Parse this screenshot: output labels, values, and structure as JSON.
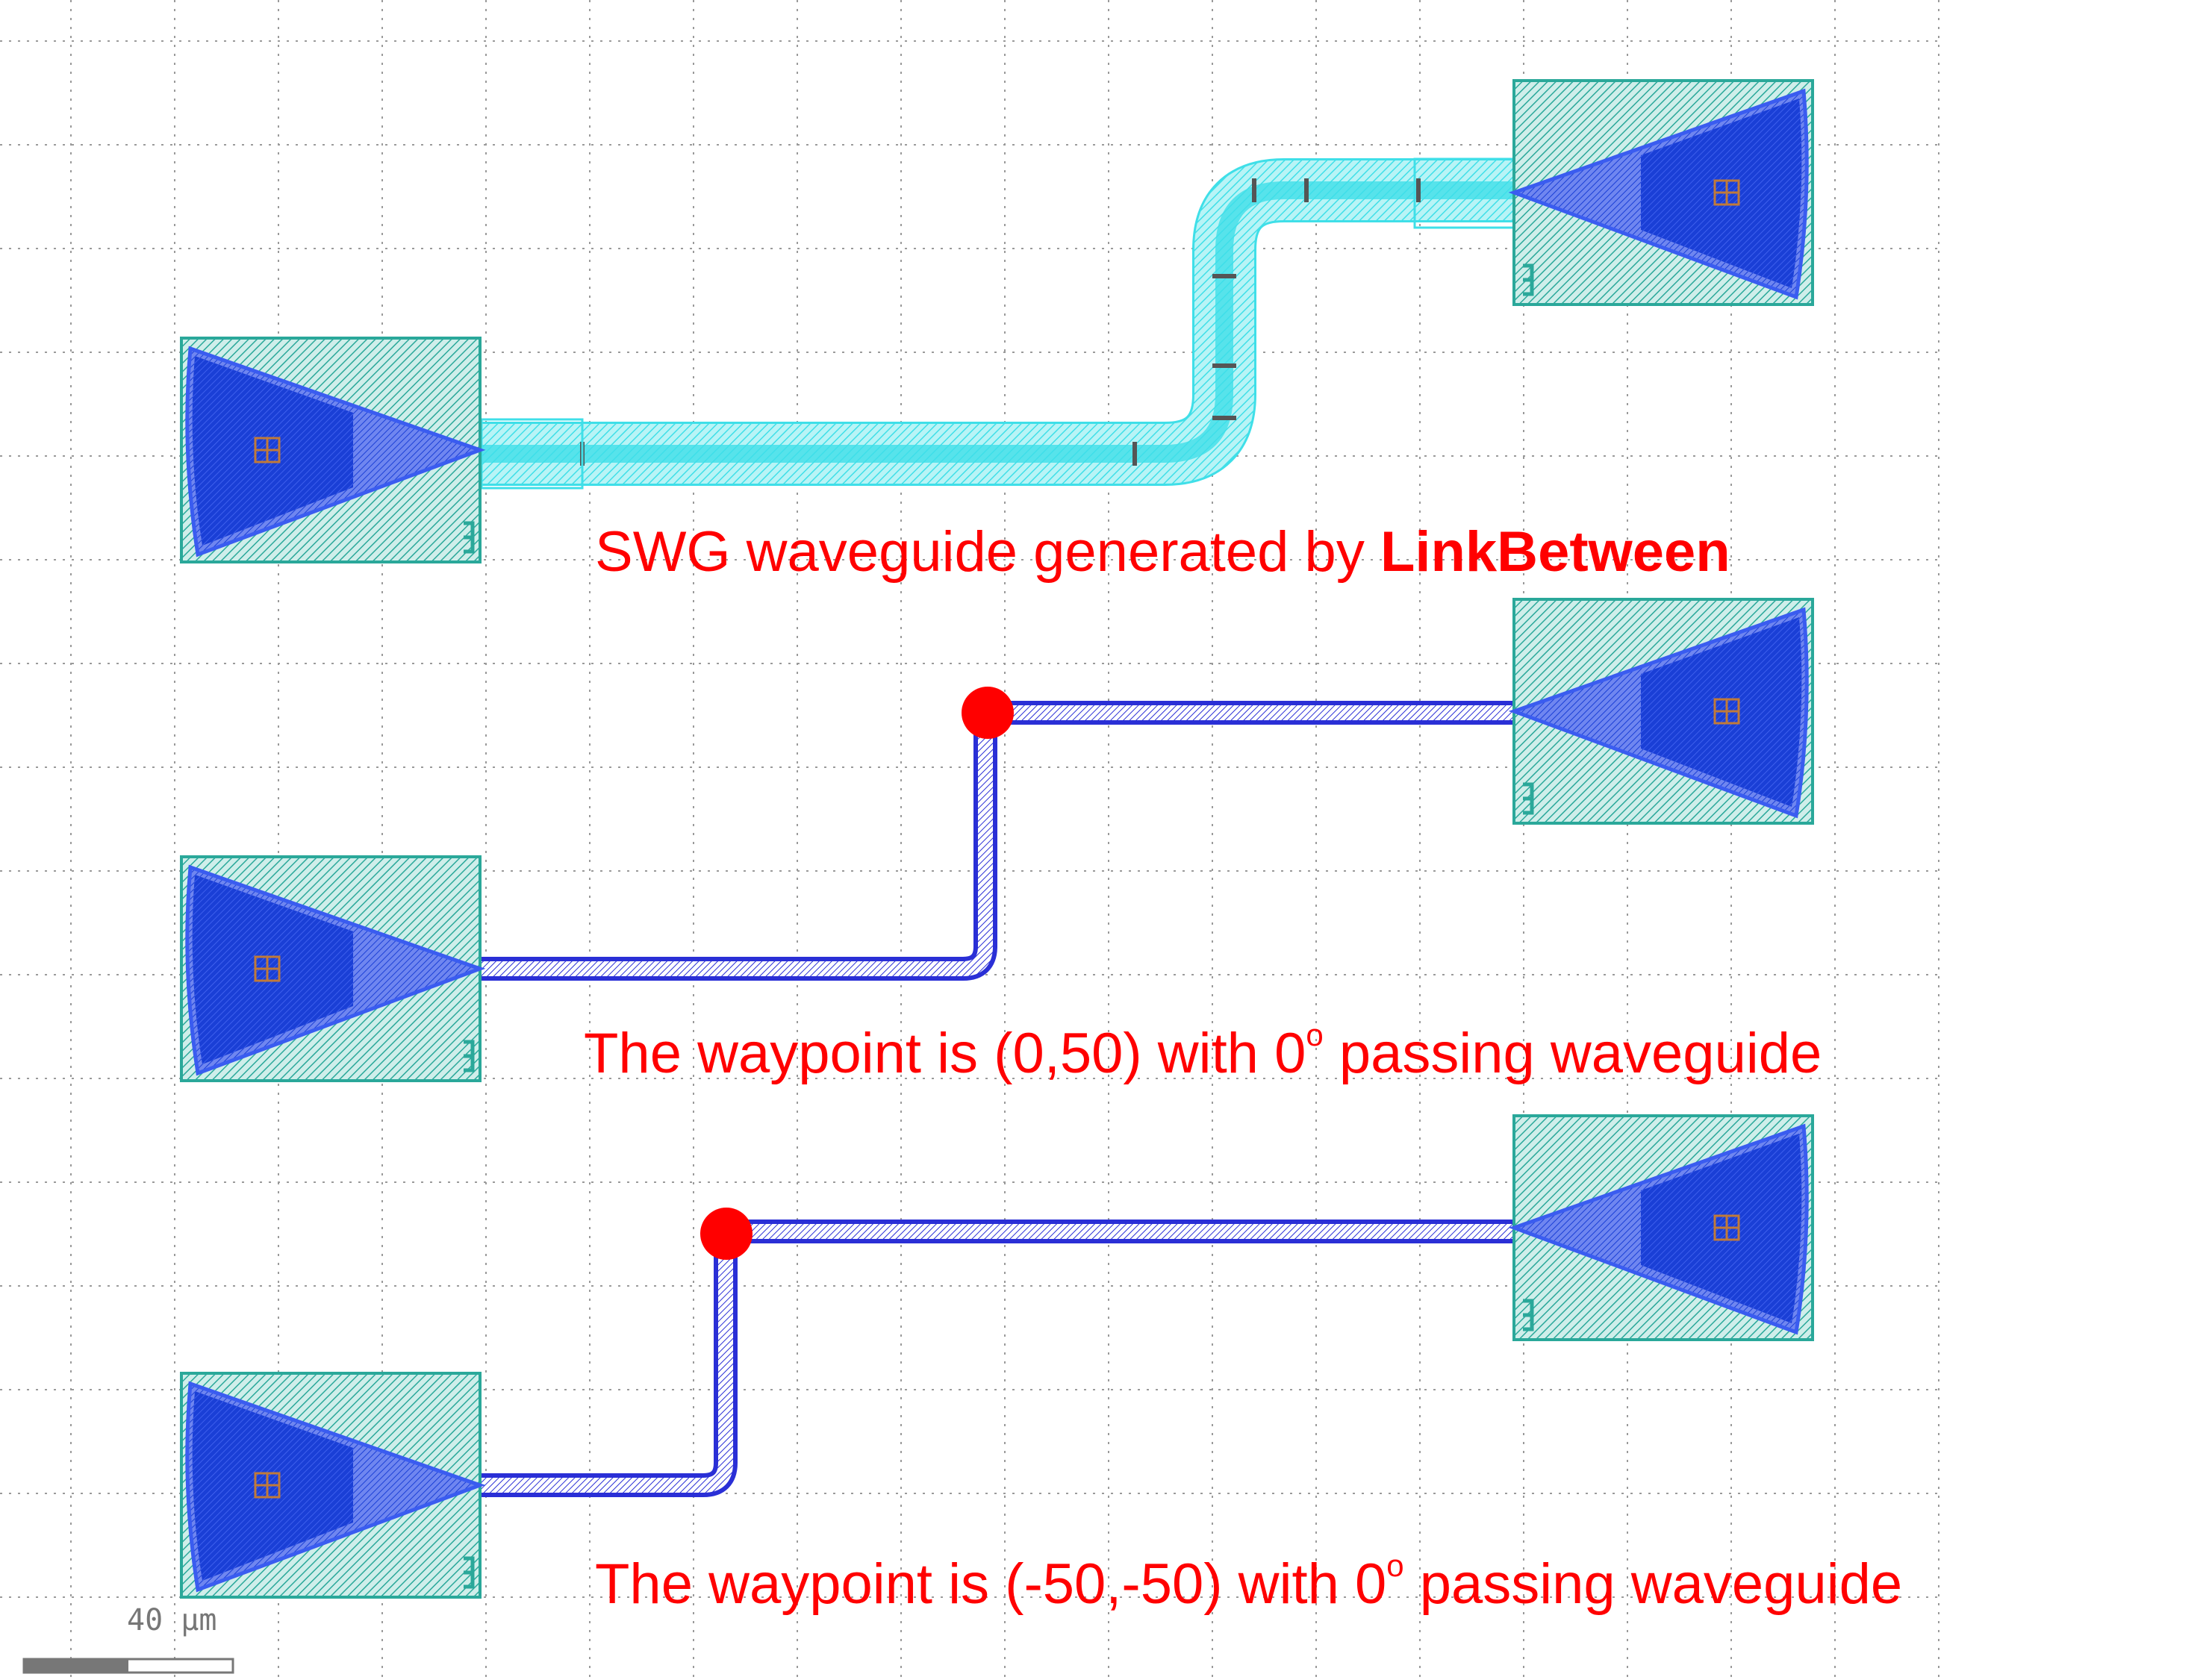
{
  "annotations": {
    "swg_prefix": "SWG waveguide generated by ",
    "swg_bold": "LinkBetween",
    "wp1_prefix": "The waypoint is (0,50) with 0",
    "wp1_sup": "o",
    "wp1_suffix": " passing waveguide",
    "wp2_prefix": "The waypoint is (-50,-50) with 0",
    "wp2_sup": "o",
    "wp2_suffix": " passing waveguide"
  },
  "scale_bar": {
    "label": "40 μm"
  },
  "colors": {
    "annotation": "#ff0000",
    "waypoint_marker": "#ff0000",
    "grating_fill": "#1a3fd6",
    "grating_outline": "#3a5cf0",
    "pad_fill": "#9fd8d0",
    "pad_outline": "#2aa89a",
    "swg_waveguide": "#5fe6ee",
    "strip_waveguide": "#2a2fd6",
    "grid": "#9a9a9a"
  },
  "icons": [
    "grating-coupler-icon",
    "port-marker-icon",
    "waypoint-marker-icon"
  ]
}
